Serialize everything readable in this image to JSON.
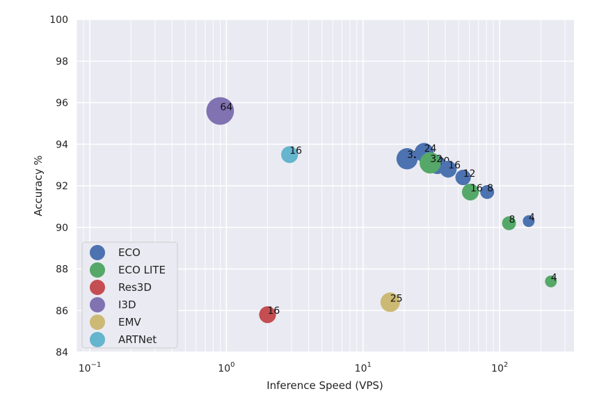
{
  "chart_data": {
    "type": "scatter",
    "title": "",
    "xlabel": "Inference Speed (VPS)",
    "ylabel": "Accuracy %",
    "xscale": "log",
    "xlim": [
      0.08,
      350
    ],
    "ylim": [
      84,
      100
    ],
    "yticks": [
      "84",
      "86",
      "88",
      "90",
      "92",
      "94",
      "96",
      "98",
      "100"
    ],
    "xticks": [
      {
        "value": 0.1,
        "base": "10",
        "exp": "−1"
      },
      {
        "value": 1,
        "base": "10",
        "exp": "0"
      },
      {
        "value": 10,
        "base": "10",
        "exp": "1"
      },
      {
        "value": 100,
        "base": "10",
        "exp": "2"
      }
    ],
    "grid": true,
    "legend_position": "lower-left",
    "series": [
      {
        "name": "ECO",
        "color": "#4c72b0",
        "points": [
          {
            "x": 21,
            "y": 93.3,
            "label": "32"
          },
          {
            "x": 28,
            "y": 93.6,
            "label": "24"
          },
          {
            "x": 35,
            "y": 93.0,
            "label": "20"
          },
          {
            "x": 42,
            "y": 92.8,
            "label": "16"
          },
          {
            "x": 54,
            "y": 92.4,
            "label": "12"
          },
          {
            "x": 81,
            "y": 91.7,
            "label": "8"
          },
          {
            "x": 163,
            "y": 90.3,
            "label": "4"
          }
        ]
      },
      {
        "name": "ECO LITE",
        "color": "#55a868",
        "points": [
          {
            "x": 31,
            "y": 93.1,
            "label": "32"
          },
          {
            "x": 61,
            "y": 91.7,
            "label": "16"
          },
          {
            "x": 117,
            "y": 90.2,
            "label": "8"
          },
          {
            "x": 237,
            "y": 87.4,
            "label": "4"
          }
        ]
      },
      {
        "name": "Res3D",
        "color": "#c44e52",
        "points": [
          {
            "x": 2.0,
            "y": 85.8,
            "label": "16"
          }
        ]
      },
      {
        "name": "I3D",
        "color": "#8172b2",
        "points": [
          {
            "x": 0.9,
            "y": 95.6,
            "label": "64"
          }
        ]
      },
      {
        "name": "EMV",
        "color": "#ccb974",
        "points": [
          {
            "x": 15.8,
            "y": 86.4,
            "label": "25"
          }
        ]
      },
      {
        "name": "ARTNet",
        "color": "#64b5cd",
        "points": [
          {
            "x": 2.9,
            "y": 93.5,
            "label": "16"
          }
        ]
      }
    ]
  }
}
